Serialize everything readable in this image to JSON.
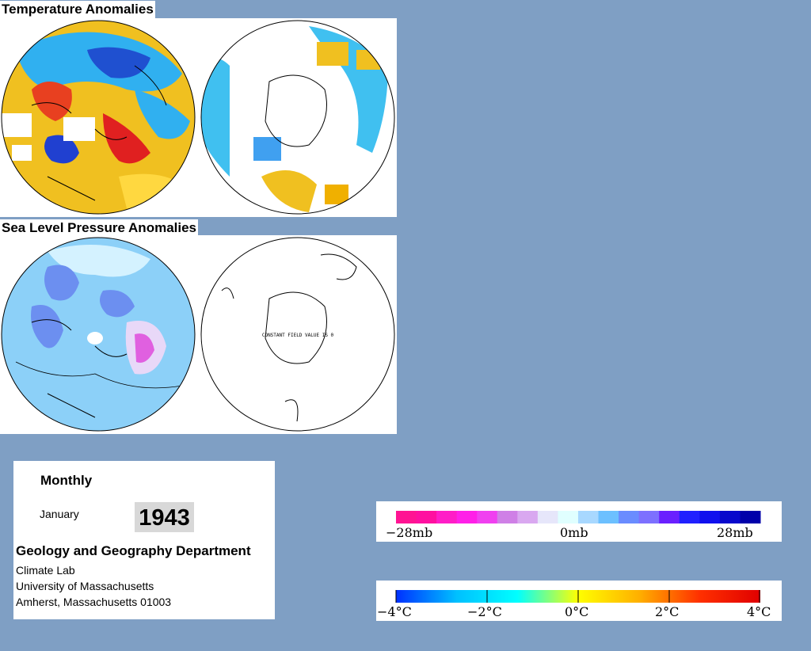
{
  "temperature": {
    "title": "Temperature Anomalies"
  },
  "pressure": {
    "title": "Sea Level Pressure Anomalies",
    "constant_field_text": "CONSTANT FIELD  VALUE IS 0"
  },
  "info": {
    "frequency": "Monthly",
    "month": "January",
    "year": "1943",
    "department": "Geology and Geography Department",
    "lines": [
      "Climate Lab",
      "University of Massachusetts",
      "Amherst, Massachusetts 01003"
    ]
  },
  "pressure_legend": {
    "labels": [
      "−28mb",
      "0mb",
      "28mb"
    ],
    "colors": [
      "#ff1493",
      "#ff10a0",
      "#ff1dc7",
      "#ff20e8",
      "#f040f0",
      "#cf80e6",
      "#d9a8f0",
      "#e6e6fa",
      "#e0ffff",
      "#a8d8ff",
      "#6cc0ff",
      "#6a8cff",
      "#7d70ff",
      "#6a20ff",
      "#2020ff",
      "#1010ee",
      "#0808cc",
      "#0000aa"
    ]
  },
  "temperature_legend": {
    "labels": [
      "−4°C",
      "−2°C",
      "0°C",
      "2°C",
      "4°C"
    ],
    "gradient": [
      "#0030ff",
      "#00c0ff",
      "#00ffff",
      "#ffff00",
      "#ffb000",
      "#ff3000",
      "#e00000"
    ]
  }
}
